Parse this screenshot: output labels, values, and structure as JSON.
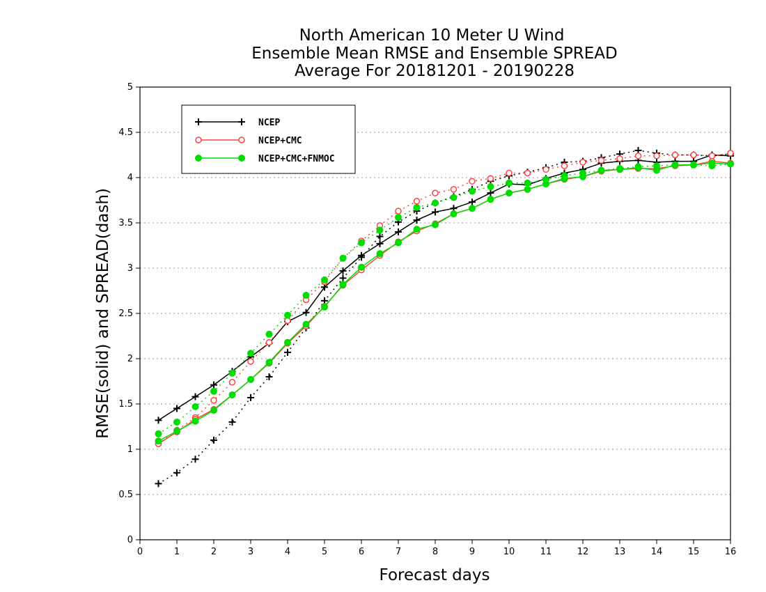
{
  "chart_data": {
    "type": "line",
    "title_lines": [
      "North American 10 Meter U Wind",
      "Ensemble Mean RMSE and Ensemble SPREAD",
      "Average For 20181201 - 20190228"
    ],
    "xlabel": "Forecast days",
    "ylabel": "RMSE(solid) and SPREAD(dash)",
    "xlim": [
      0,
      16
    ],
    "ylim": [
      0,
      5
    ],
    "x_ticks": [
      "0",
      "1",
      "2",
      "3",
      "4",
      "5",
      "6",
      "7",
      "8",
      "9",
      "10",
      "11",
      "12",
      "13",
      "14",
      "15",
      "16"
    ],
    "y_ticks": [
      "0",
      "0.5",
      "1",
      "1.5",
      "2",
      "2.5",
      "3",
      "3.5",
      "4",
      "4.5",
      "5"
    ],
    "grid": "horizontal dotted",
    "legend_position": "top-left",
    "x": [
      0.5,
      1,
      1.5,
      2,
      2.5,
      3,
      3.5,
      4,
      4.5,
      5,
      5.5,
      6,
      6.5,
      7,
      7.5,
      8,
      8.5,
      9,
      9.5,
      10,
      10.5,
      11,
      11.5,
      12,
      12.5,
      13,
      13.5,
      14,
      14.5,
      15,
      15.5,
      16
    ],
    "series": [
      {
        "name": "NCEP",
        "color": "#000000",
        "marker": "plus",
        "rmse": [
          1.32,
          1.45,
          1.58,
          1.71,
          1.86,
          2.02,
          2.17,
          2.41,
          2.51,
          2.79,
          2.97,
          3.14,
          3.27,
          3.4,
          3.53,
          3.62,
          3.66,
          3.73,
          3.83,
          3.93,
          3.92,
          3.99,
          4.05,
          4.09,
          4.16,
          4.18,
          4.19,
          4.17,
          4.18,
          4.18,
          4.25,
          4.24
        ],
        "spread": [
          0.62,
          0.74,
          0.89,
          1.1,
          1.3,
          1.57,
          1.8,
          2.07,
          2.34,
          2.64,
          2.89,
          3.12,
          3.35,
          3.51,
          3.63,
          3.72,
          3.79,
          3.87,
          3.96,
          4.02,
          4.06,
          4.11,
          4.17,
          4.18,
          4.22,
          4.26,
          4.3,
          4.27,
          4.25,
          4.25,
          4.24,
          4.26
        ]
      },
      {
        "name": "NCEP+CMC",
        "color": "#ff4040",
        "marker": "open-circle",
        "rmse": [
          1.06,
          1.19,
          1.33,
          1.44,
          1.6,
          1.77,
          1.95,
          2.17,
          2.36,
          2.58,
          2.81,
          2.98,
          3.14,
          3.29,
          3.41,
          3.49,
          3.6,
          3.66,
          3.76,
          3.83,
          3.87,
          3.93,
          3.98,
          4.01,
          4.07,
          4.09,
          4.1,
          4.1,
          4.13,
          4.14,
          4.18,
          4.16
        ],
        "spread": [
          1.06,
          1.21,
          1.35,
          1.54,
          1.74,
          1.97,
          2.18,
          2.42,
          2.65,
          2.85,
          3.11,
          3.3,
          3.47,
          3.63,
          3.74,
          3.83,
          3.87,
          3.96,
          3.99,
          4.05,
          4.05,
          4.09,
          4.13,
          4.17,
          4.19,
          4.21,
          4.24,
          4.24,
          4.25,
          4.25,
          4.24,
          4.27
        ]
      },
      {
        "name": "NCEP+CMC+FNMOC",
        "color": "#00dd00",
        "marker": "filled-circle",
        "rmse": [
          1.09,
          1.2,
          1.31,
          1.43,
          1.6,
          1.77,
          1.96,
          2.18,
          2.38,
          2.57,
          2.82,
          3.01,
          3.16,
          3.28,
          3.43,
          3.48,
          3.6,
          3.66,
          3.76,
          3.83,
          3.87,
          3.93,
          3.99,
          4.01,
          4.08,
          4.09,
          4.11,
          4.08,
          4.14,
          4.14,
          4.16,
          4.15
        ],
        "spread": [
          1.17,
          1.3,
          1.47,
          1.64,
          1.84,
          2.06,
          2.27,
          2.48,
          2.7,
          2.87,
          3.11,
          3.28,
          3.42,
          3.56,
          3.67,
          3.72,
          3.78,
          3.85,
          3.9,
          3.94,
          3.94,
          3.98,
          4.02,
          4.05,
          4.08,
          4.1,
          4.12,
          4.13,
          4.14,
          4.14,
          4.13,
          4.15
        ]
      }
    ]
  }
}
